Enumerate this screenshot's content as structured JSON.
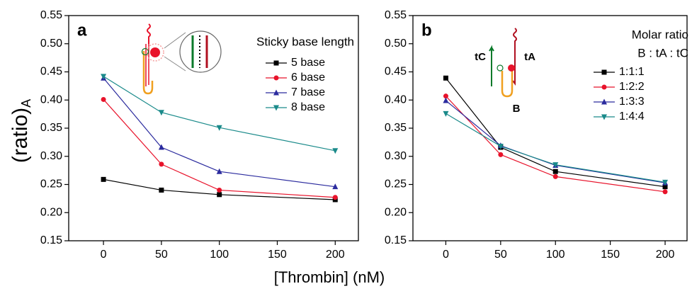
{
  "xlabel": "[Thrombin] (nM)",
  "ylabel": "(ratio)",
  "ylabel_sub": "A",
  "chart_data": [
    {
      "type": "line",
      "panel": "a",
      "legend_title": "Sticky base length",
      "legend": "upper right",
      "x": [
        0,
        50,
        100,
        200
      ],
      "xlim": [
        -30,
        220
      ],
      "xticks": [
        0,
        50,
        100,
        150,
        200
      ],
      "ylim": [
        0.15,
        0.55
      ],
      "yticks": [
        0.15,
        {
          "value": 0.2,
          "label": "0.20"
        },
        0.25,
        {
          "value": 0.3,
          "label": "0.30"
        },
        0.35,
        {
          "value": 0.4,
          "label": "0.40"
        },
        0.45,
        {
          "value": 0.5,
          "label": "0.50"
        },
        0.55
      ],
      "series": [
        {
          "name": "5 base",
          "color": "#000000",
          "marker": "square",
          "values": [
            0.259,
            0.24,
            0.232,
            0.223
          ]
        },
        {
          "name": "6 base",
          "color": "#e8132b",
          "marker": "circle",
          "values": [
            0.401,
            0.286,
            0.24,
            0.227
          ]
        },
        {
          "name": "7 base",
          "color": "#2b2b9e",
          "marker": "triangle-up",
          "values": [
            0.439,
            0.316,
            0.273,
            0.246
          ]
        },
        {
          "name": "8 base",
          "color": "#1a8a8a",
          "marker": "triangle-down",
          "values": [
            0.442,
            0.378,
            0.351,
            0.31
          ]
        }
      ]
    },
    {
      "type": "line",
      "panel": "b",
      "legend_title": "Molar ratio",
      "legend_subtitle": "B : tA : tC",
      "legend": "upper right",
      "annotations": [
        "tC",
        "tA",
        "B"
      ],
      "x": [
        0,
        50,
        100,
        200
      ],
      "xlim": [
        -30,
        220
      ],
      "xticks": [
        0,
        50,
        100,
        150,
        200
      ],
      "ylim": [
        0.15,
        0.55
      ],
      "yticks": [
        0.15,
        {
          "value": 0.2,
          "label": "0.20"
        },
        0.25,
        {
          "value": 0.3,
          "label": "0.30"
        },
        0.35,
        {
          "value": 0.4,
          "label": "0.40"
        },
        0.45,
        {
          "value": 0.5,
          "label": "0.50"
        },
        0.55
      ],
      "series": [
        {
          "name": "1:1:1",
          "color": "#000000",
          "marker": "square",
          "values": [
            0.439,
            0.316,
            0.273,
            0.246
          ]
        },
        {
          "name": "1:2:2",
          "color": "#e8132b",
          "marker": "circle",
          "values": [
            0.407,
            0.303,
            0.264,
            0.237
          ]
        },
        {
          "name": "1:3:3",
          "color": "#2b2b9e",
          "marker": "triangle-up",
          "values": [
            0.399,
            0.319,
            0.284,
            0.253
          ]
        },
        {
          "name": "1:4:4",
          "color": "#1a8a8a",
          "marker": "triangle-down",
          "values": [
            0.376,
            0.318,
            0.285,
            0.254
          ]
        }
      ]
    }
  ]
}
